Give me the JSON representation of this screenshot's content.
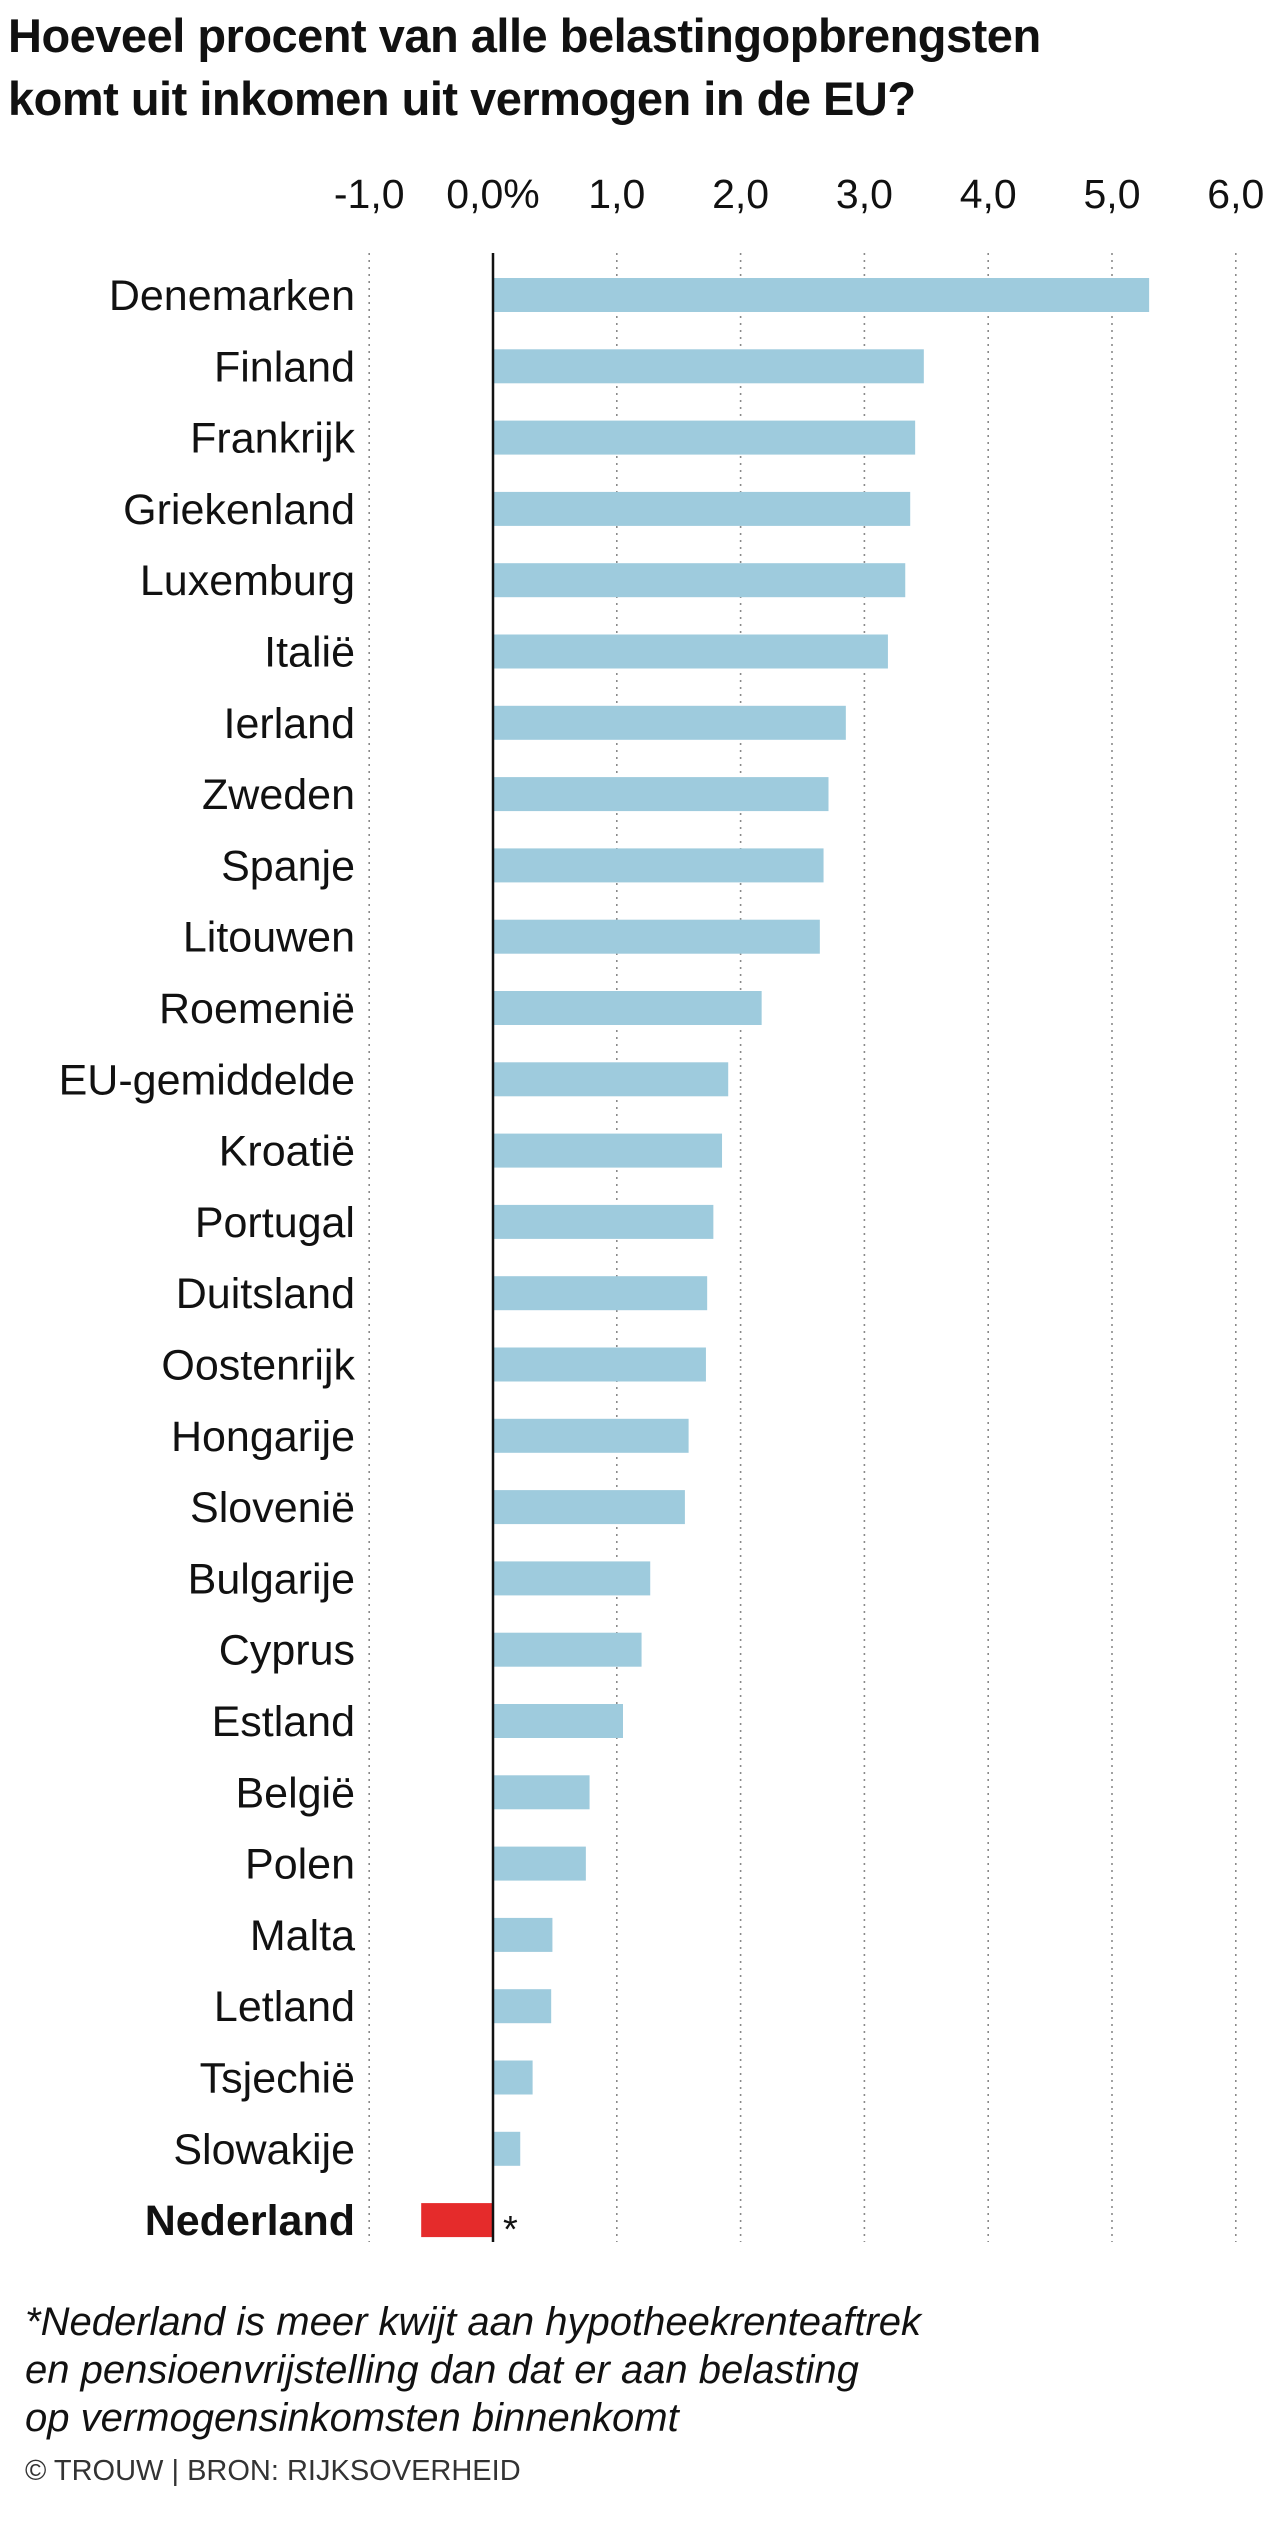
{
  "title": {
    "line1": "Hoeveel procent van alle belastingopbrengsten",
    "line2": "komt uit inkomen uit vermogen in de EU?"
  },
  "footnote": {
    "line1": "*Nederland is meer kwijt aan hypotheekrenteaftrek",
    "line2": "en pensioenvrijstelling dan dat er aan belasting",
    "line3": "op vermogensinkomsten binnenkomt"
  },
  "credit": "© TROUW | BRON: RIJKSOVERHEID",
  "colors": {
    "bar": "#9ecbdd",
    "highlight": "#e52b2b",
    "grid": "#8a8a8a",
    "axis": "#111111"
  },
  "chart_data": {
    "type": "bar",
    "orientation": "horizontal",
    "title": "Hoeveel procent van alle belastingopbrengsten komt uit inkomen uit vermogen in de EU?",
    "xlabel": "",
    "ylabel": "",
    "xlim": [
      -1.0,
      6.0
    ],
    "ticks": [
      -1,
      0,
      1,
      2,
      3,
      4,
      5,
      6
    ],
    "tick_labels": [
      "-1,0",
      "0,0%",
      "1,0",
      "2,0",
      "3,0",
      "4,0",
      "5,0",
      "6,0"
    ],
    "axis_position": "top",
    "grid": true,
    "categories": [
      "Denemarken",
      "Finland",
      "Frankrijk",
      "Griekenland",
      "Luxemburg",
      "Italië",
      "Ierland",
      "Zweden",
      "Spanje",
      "Litouwen",
      "Roemenië",
      "EU-gemiddelde",
      "Kroatië",
      "Portugal",
      "Duitsland",
      "Oostenrijk",
      "Hongarije",
      "Slovenië",
      "Bulgarije",
      "Cyprus",
      "Estland",
      "België",
      "Polen",
      "Malta",
      "Letland",
      "Tsjechië",
      "Slowakije",
      "Nederland"
    ],
    "values": [
      5.3,
      3.48,
      3.41,
      3.37,
      3.33,
      3.19,
      2.85,
      2.71,
      2.67,
      2.64,
      2.17,
      1.9,
      1.85,
      1.78,
      1.73,
      1.72,
      1.58,
      1.55,
      1.27,
      1.2,
      1.05,
      0.78,
      0.75,
      0.48,
      0.47,
      0.32,
      0.22,
      -0.58
    ],
    "highlight": "Nederland",
    "annotations": [
      {
        "category": "Nederland",
        "text": "*"
      }
    ]
  }
}
